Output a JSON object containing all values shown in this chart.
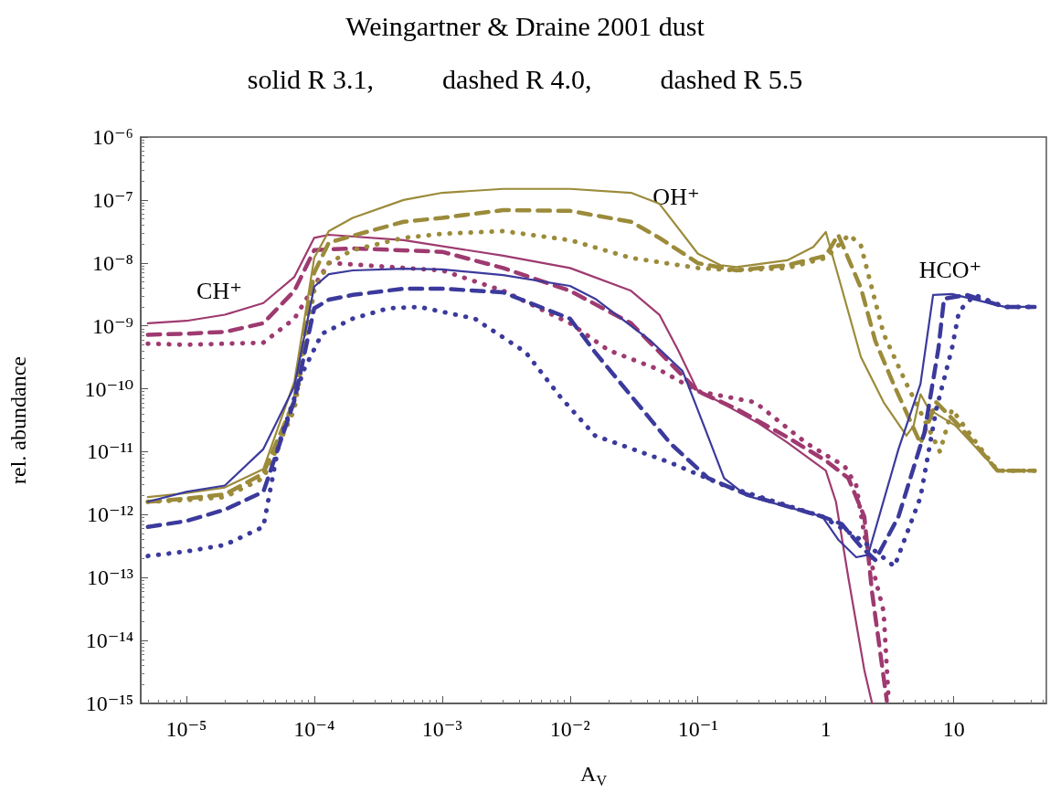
{
  "chart_data": {
    "type": "line",
    "title": "Weingartner & Draine 2001 dust",
    "subtitle": "solid R 3.1,          dashed R 4.0,          dashed R 5.5",
    "xlabel": "A$_{V}$",
    "ylabel": "rel. abundance",
    "log": "xy",
    "marker": "none",
    "xlim": [
      4.4e-06,
      53
    ],
    "ylim": [
      1e-15,
      1e-06
    ],
    "xticks": [
      {
        "value": 1e-05,
        "label": "10⁻⁵"
      },
      {
        "value": 0.0001,
        "label": "10⁻⁴"
      },
      {
        "value": 0.001,
        "label": "10⁻³"
      },
      {
        "value": 0.01,
        "label": "10⁻²"
      },
      {
        "value": 0.1,
        "label": "10⁻¹"
      },
      1,
      10
    ],
    "yticks": [
      {
        "value": 1e-15,
        "label": "10⁻¹⁵"
      },
      {
        "value": 1e-14,
        "label": "10⁻¹⁴"
      },
      {
        "value": 1e-13,
        "label": "10⁻¹³"
      },
      {
        "value": 1e-12,
        "label": "10⁻¹²"
      },
      {
        "value": 1e-11,
        "label": "10⁻¹¹"
      },
      {
        "value": 1e-10,
        "label": "10⁻¹⁰"
      },
      {
        "value": 1e-09,
        "label": "10⁻⁹"
      },
      {
        "value": 1e-08,
        "label": "10⁻⁸"
      },
      {
        "value": 1e-07,
        "label": "10⁻⁷"
      },
      {
        "value": 1e-06,
        "label": "10⁻⁶"
      }
    ],
    "annotations": [
      "CH⁺",
      "OH⁺",
      "HCO⁺"
    ],
    "series": [
      {
        "color": "#9e3a70",
        "line_style": "solid",
        "x": [
          5e-06,
          1e-05,
          2e-05,
          4e-05,
          7e-05,
          0.0001,
          0.00013,
          0.0005,
          0.003,
          0.01,
          0.03,
          0.05,
          0.07,
          0.1,
          0.15,
          0.3,
          0.5,
          1,
          1.2,
          1.5,
          2,
          2.3
        ],
        "values": [
          1.1e-09,
          1.2e-09,
          1.5e-09,
          2.3e-09,
          6e-09,
          2.5e-08,
          2.8e-08,
          2.3e-08,
          1.3e-08,
          8.3e-09,
          3.6e-09,
          1.5e-09,
          4.1e-10,
          9.1e-11,
          6.1e-11,
          2.8e-11,
          1.4e-11,
          5e-12,
          1.6e-12,
          1e-13,
          3.4e-15,
          1e-15
        ]
      },
      {
        "color": "#9e3a70",
        "line_style": "dashed",
        "x": [
          5e-06,
          1e-05,
          2e-05,
          4e-05,
          7e-05,
          0.0001,
          0.0002,
          0.001,
          0.003,
          0.01,
          0.03,
          0.1,
          0.2,
          0.5,
          1,
          1.5,
          2,
          2.3,
          3
        ],
        "values": [
          7.2e-10,
          7.5e-10,
          8e-10,
          1.1e-09,
          3.6e-09,
          1.6e-08,
          1.7e-08,
          1.5e-08,
          8.3e-09,
          3.6e-09,
          1.1e-09,
          9.1e-11,
          4.8e-11,
          1.7e-11,
          7.2e-12,
          3.8e-12,
          9.3e-13,
          5.8e-14,
          1.1e-15
        ]
      },
      {
        "color": "#9e3a70",
        "line_style": "dotted",
        "x": [
          5e-06,
          1e-05,
          2e-05,
          4e-05,
          7e-05,
          0.0001,
          0.00013,
          0.001,
          0.003,
          0.01,
          0.02,
          0.05,
          0.1,
          0.28,
          0.71,
          1.4,
          1.73,
          2,
          2.83,
          3.1
        ],
        "values": [
          5.2e-10,
          5e-10,
          5.2e-10,
          5.4e-10,
          1.3e-09,
          4.3e-09,
          1e-08,
          7.6e-09,
          3.6e-09,
          1.1e-09,
          4.1e-10,
          2e-10,
          9.1e-11,
          6.1e-11,
          1.35e-11,
          5.9e-12,
          2.9e-12,
          4.8e-13,
          2.9e-14,
          1.1e-15
        ]
      },
      {
        "color": "#9b8b3a",
        "line_style": "solid",
        "x": [
          5e-06,
          1e-05,
          2e-05,
          4e-05,
          7e-05,
          0.0001,
          0.00013,
          0.0002,
          0.0005,
          0.001,
          0.003,
          0.01,
          0.03,
          0.05,
          0.1,
          0.15,
          0.2,
          0.5,
          0.8,
          1,
          1.33,
          1.88,
          2.83,
          4.27,
          4.86,
          5.5,
          6.4,
          10.3,
          22,
          43
        ],
        "values": [
          1.9e-12,
          2.2e-12,
          2.7e-12,
          5.3e-12,
          1.3e-10,
          1.2e-08,
          3.2e-08,
          5.2e-08,
          1e-07,
          1.3e-07,
          1.5e-07,
          1.5e-07,
          1.3e-07,
          8.7e-08,
          1.4e-08,
          9.2e-09,
          8.6e-09,
          1.1e-08,
          1.8e-08,
          3.1e-08,
          4e-09,
          3.2e-10,
          6.1e-11,
          1.8e-11,
          2.6e-11,
          8.2e-11,
          4.7e-11,
          2.6e-11,
          5e-12,
          5e-12
        ]
      },
      {
        "color": "#9b8b3a",
        "line_style": "dashed",
        "x": [
          5e-06,
          1e-05,
          2e-05,
          4e-05,
          7e-05,
          0.0001,
          0.00013,
          0.0002,
          0.0005,
          0.001,
          0.003,
          0.01,
          0.03,
          0.05,
          0.1,
          0.2,
          0.5,
          1,
          1.25,
          1.88,
          2.44,
          3.44,
          5.5,
          7.3,
          11,
          22,
          43
        ],
        "values": [
          1.6e-12,
          1.8e-12,
          2.1e-12,
          4.5e-12,
          6.5e-11,
          7e-09,
          2.1e-08,
          2.7e-08,
          4.5e-08,
          5.2e-08,
          6.9e-08,
          6.7e-08,
          4.5e-08,
          2.5e-08,
          9.9e-09,
          7.6e-09,
          9.2e-09,
          1.3e-08,
          2.8e-08,
          4e-09,
          5.7e-10,
          1.1e-10,
          1.35e-11,
          6.1e-11,
          2.6e-11,
          5e-12,
          5e-12
        ]
      },
      {
        "color": "#9b8b3a",
        "line_style": "dotted",
        "x": [
          5e-06,
          1e-05,
          2e-05,
          4e-05,
          7e-05,
          0.0001,
          0.00013,
          0.0002,
          0.0005,
          0.001,
          0.003,
          0.01,
          0.03,
          0.1,
          0.2,
          0.5,
          1,
          1.52,
          1.88,
          2.83,
          4.27,
          6.4,
          7.8,
          9.7,
          14.6,
          22,
          43
        ],
        "values": [
          1.6e-12,
          1.7e-12,
          1.9e-12,
          3.8e-12,
          4.7e-11,
          3.6e-09,
          1e-08,
          1.6e-08,
          2.5e-08,
          2.9e-08,
          3.2e-08,
          2.3e-08,
          1.2e-08,
          8.3e-09,
          7.6e-09,
          8.3e-09,
          1.2e-08,
          2.8e-08,
          1.9e-08,
          7.5e-10,
          1.2e-10,
          2.3e-11,
          1e-11,
          4.7e-11,
          1.5e-11,
          5e-12,
          5e-12
        ]
      },
      {
        "color": "#3b3a9c",
        "line_style": "solid",
        "x": [
          5e-06,
          1e-05,
          2e-05,
          4e-05,
          7e-05,
          0.0001,
          0.00013,
          0.0002,
          0.0005,
          0.001,
          0.003,
          0.01,
          0.0157,
          0.043,
          0.076,
          0.114,
          0.16,
          0.24,
          0.94,
          1.25,
          1.73,
          2.14,
          3.7,
          5.5,
          6.9,
          9.7,
          25,
          43
        ],
        "values": [
          1.6e-12,
          2.3e-12,
          2.9e-12,
          1.1e-11,
          1.1e-10,
          4.2e-09,
          6.6e-09,
          7.6e-09,
          8.1e-09,
          7.9e-09,
          6.4e-09,
          4.3e-09,
          2.7e-09,
          5.7e-10,
          1.9e-10,
          2.3e-11,
          3.8e-12,
          2e-12,
          9.3e-13,
          4e-13,
          2.1e-13,
          2.3e-13,
          1.1e-11,
          1.2e-10,
          3.1e-09,
          3.2e-09,
          2e-09,
          2e-09
        ]
      },
      {
        "color": "#3b3a9c",
        "line_style": "dashed",
        "x": [
          5e-06,
          1e-05,
          2e-05,
          4e-05,
          7e-05,
          0.0001,
          0.00013,
          0.0002,
          0.0005,
          0.001,
          0.003,
          0.01,
          0.0157,
          0.061,
          0.12,
          0.24,
          0.94,
          1.33,
          1.88,
          2.44,
          3.7,
          5.9,
          7.6,
          8.4,
          12.6,
          25,
          43
        ],
        "values": [
          6.4e-13,
          7.9e-13,
          1.2e-12,
          2.3e-12,
          6.5e-11,
          1.9e-09,
          2.6e-09,
          3.1e-09,
          3.9e-09,
          3.9e-09,
          3.4e-09,
          1.3e-09,
          3.8e-10,
          1.35e-11,
          3.8e-12,
          2.1e-12,
          9.3e-13,
          7.1e-13,
          3.1e-13,
          1.9e-13,
          9.3e-13,
          2e-11,
          4.4e-10,
          2.7e-09,
          3.1e-09,
          2e-09,
          2e-09
        ]
      },
      {
        "color": "#3b3a9c",
        "line_style": "dotted",
        "x": [
          5e-06,
          1e-05,
          2e-05,
          4e-05,
          5.3e-05,
          8.3e-05,
          0.000115,
          0.0002,
          0.00038,
          0.00066,
          0.0018,
          0.0045,
          0.0085,
          0.0157,
          0.061,
          0.16,
          0.94,
          1.88,
          3.44,
          5.5,
          7.3,
          9.7,
          11,
          14.6,
          25,
          43
        ],
        "values": [
          2.2e-13,
          2.6e-13,
          3.3e-13,
          6.4e-13,
          1.35e-11,
          2e-10,
          7.5e-10,
          1.3e-09,
          1.9e-09,
          2e-09,
          1.3e-09,
          3.8e-10,
          7.2e-11,
          1.8e-11,
          6.7e-12,
          2.9e-12,
          9.3e-13,
          4e-13,
          1.5e-13,
          1.9e-12,
          4.7e-11,
          4.4e-10,
          1.7e-09,
          3.1e-09,
          2e-09,
          2e-09
        ]
      }
    ]
  }
}
